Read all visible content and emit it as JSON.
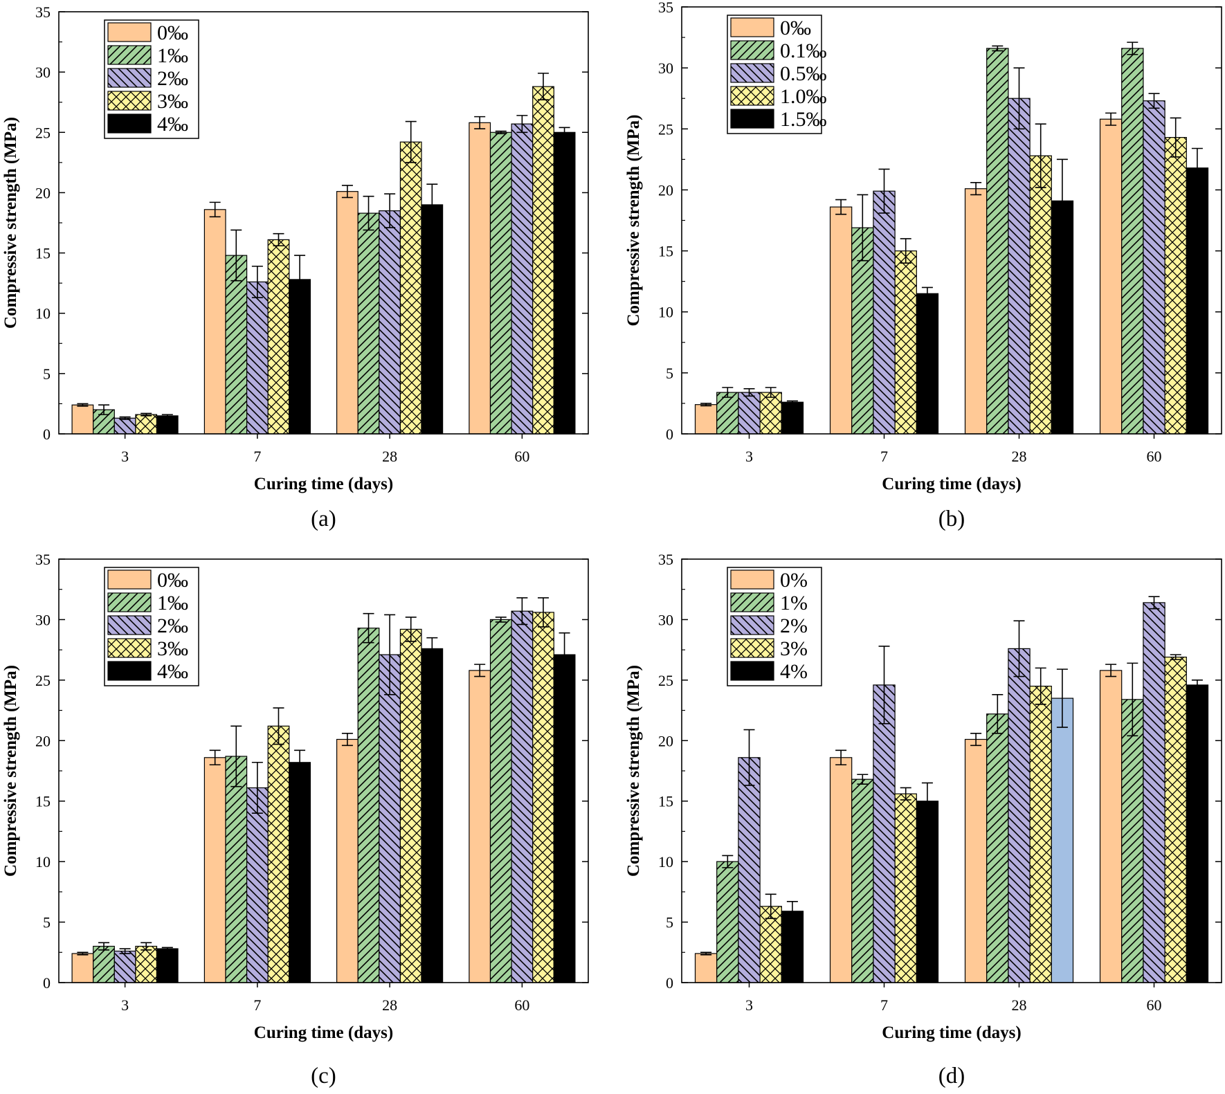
{
  "chart_data": [
    {
      "panel": "(a)",
      "type": "bar",
      "xlabel": "Curing time (days)",
      "ylabel": "Compressive strength (MPa)",
      "ylim": [
        0,
        35
      ],
      "yticks": [
        0,
        5,
        10,
        15,
        20,
        25,
        30,
        35
      ],
      "categories": [
        "3",
        "7",
        "28",
        "60"
      ],
      "legend_position": "top-left",
      "series": [
        {
          "name": "0‰",
          "pattern": "solid",
          "color": "#FFC996",
          "values": [
            2.4,
            18.6,
            20.1,
            25.8
          ],
          "errors": [
            0.1,
            0.6,
            0.5,
            0.5
          ]
        },
        {
          "name": "1‰",
          "pattern": "hatch-right",
          "color": "#A3D39C",
          "values": [
            2.0,
            14.8,
            18.3,
            25.0
          ],
          "errors": [
            0.4,
            2.1,
            1.4,
            0.1
          ]
        },
        {
          "name": "2‰",
          "pattern": "hatch-left",
          "color": "#B4AEDD",
          "values": [
            1.3,
            12.6,
            18.5,
            25.7
          ],
          "errors": [
            0.1,
            1.3,
            1.4,
            0.7
          ]
        },
        {
          "name": "3‰",
          "pattern": "crosshatch",
          "color": "#FFF59D",
          "values": [
            1.6,
            16.1,
            24.2,
            28.8
          ],
          "errors": [
            0.1,
            0.5,
            1.7,
            1.1
          ]
        },
        {
          "name": "4‰",
          "pattern": "solid",
          "color": "#000000",
          "values": [
            1.5,
            12.8,
            19.0,
            25.0
          ],
          "errors": [
            0.1,
            2.0,
            1.7,
            0.4
          ]
        }
      ]
    },
    {
      "panel": "(b)",
      "type": "bar",
      "xlabel": "Curing time (days)",
      "ylabel": "Compressive strength (MPa)",
      "ylim": [
        0,
        35
      ],
      "yticks": [
        0,
        5,
        10,
        15,
        20,
        25,
        30,
        35
      ],
      "categories": [
        "3",
        "7",
        "28",
        "60"
      ],
      "legend_position": "top-left",
      "series": [
        {
          "name": "0‰",
          "pattern": "solid",
          "color": "#FFC996",
          "values": [
            2.4,
            18.6,
            20.1,
            25.8
          ],
          "errors": [
            0.1,
            0.6,
            0.5,
            0.5
          ]
        },
        {
          "name": "0.1‰",
          "pattern": "hatch-right",
          "color": "#A3D39C",
          "values": [
            3.4,
            16.9,
            31.6,
            31.6
          ],
          "errors": [
            0.4,
            2.7,
            0.2,
            0.5
          ]
        },
        {
          "name": "0.5‰",
          "pattern": "hatch-left",
          "color": "#B4AEDD",
          "values": [
            3.4,
            19.9,
            27.5,
            27.3
          ],
          "errors": [
            0.3,
            1.8,
            2.5,
            0.6
          ]
        },
        {
          "name": "1.0‰",
          "pattern": "crosshatch",
          "color": "#FFF59D",
          "values": [
            3.4,
            15.0,
            22.8,
            24.3
          ],
          "errors": [
            0.4,
            1.0,
            2.6,
            1.6
          ]
        },
        {
          "name": "1.5‰",
          "pattern": "solid",
          "color": "#000000",
          "values": [
            2.6,
            11.5,
            19.1,
            21.8
          ],
          "errors": [
            0.1,
            0.5,
            3.4,
            1.6
          ]
        }
      ]
    },
    {
      "panel": "(c)",
      "type": "bar",
      "xlabel": "Curing time (days)",
      "ylabel": "Compressive strength (MPa)",
      "ylim": [
        0,
        35
      ],
      "yticks": [
        0,
        5,
        10,
        15,
        20,
        25,
        30,
        35
      ],
      "categories": [
        "3",
        "7",
        "28",
        "60"
      ],
      "legend_position": "top-left",
      "series": [
        {
          "name": "0‰",
          "pattern": "solid",
          "color": "#FFC996",
          "values": [
            2.4,
            18.6,
            20.1,
            25.8
          ],
          "errors": [
            0.1,
            0.6,
            0.5,
            0.5
          ]
        },
        {
          "name": "1‰",
          "pattern": "hatch-right",
          "color": "#A3D39C",
          "values": [
            3.0,
            18.7,
            29.3,
            30.0
          ],
          "errors": [
            0.3,
            2.5,
            1.2,
            0.2
          ]
        },
        {
          "name": "2‰",
          "pattern": "hatch-left",
          "color": "#B4AEDD",
          "values": [
            2.6,
            16.1,
            27.1,
            30.7
          ],
          "errors": [
            0.2,
            2.1,
            3.3,
            1.1
          ]
        },
        {
          "name": "3‰",
          "pattern": "crosshatch",
          "color": "#FFF59D",
          "values": [
            3.0,
            21.2,
            29.2,
            30.6
          ],
          "errors": [
            0.3,
            1.5,
            1.0,
            1.2
          ]
        },
        {
          "name": "4‰",
          "pattern": "solid",
          "color": "#000000",
          "values": [
            2.8,
            18.2,
            27.6,
            27.1
          ],
          "errors": [
            0.1,
            1.0,
            0.9,
            1.8
          ]
        }
      ]
    },
    {
      "panel": "(d)",
      "type": "bar",
      "xlabel": "Curing time (days)",
      "ylabel": "Compressive strength (MPa)",
      "ylim": [
        0,
        35
      ],
      "yticks": [
        0,
        5,
        10,
        15,
        20,
        25,
        30,
        35
      ],
      "categories": [
        "3",
        "7",
        "28",
        "60"
      ],
      "legend_position": "top-left",
      "series": [
        {
          "name": "0%",
          "pattern": "solid",
          "color": "#FFC996",
          "values": [
            2.4,
            18.6,
            20.1,
            25.8
          ],
          "errors": [
            0.1,
            0.6,
            0.5,
            0.5
          ]
        },
        {
          "name": "1%",
          "pattern": "hatch-right",
          "color": "#A3D39C",
          "values": [
            10.0,
            16.8,
            22.2,
            23.4
          ],
          "errors": [
            0.5,
            0.4,
            1.6,
            3.0
          ]
        },
        {
          "name": "2%",
          "pattern": "hatch-left",
          "color": "#B4AEDD",
          "values": [
            18.6,
            24.6,
            27.6,
            31.4
          ],
          "errors": [
            2.3,
            3.2,
            2.3,
            0.5
          ]
        },
        {
          "name": "3%",
          "pattern": "crosshatch",
          "color": "#FFF59D",
          "values": [
            6.3,
            15.6,
            24.5,
            26.9
          ],
          "errors": [
            1.0,
            0.5,
            1.5,
            0.2
          ]
        },
        {
          "name": "4%",
          "pattern": "solid",
          "color": "#000000",
          "values": [
            5.9,
            15.0,
            23.5,
            24.6
          ],
          "errors": [
            0.8,
            1.5,
            2.4,
            0.4
          ]
        }
      ],
      "overrides": [
        {
          "series": 4,
          "category": 2,
          "color": "#A3BFE3"
        }
      ]
    }
  ]
}
